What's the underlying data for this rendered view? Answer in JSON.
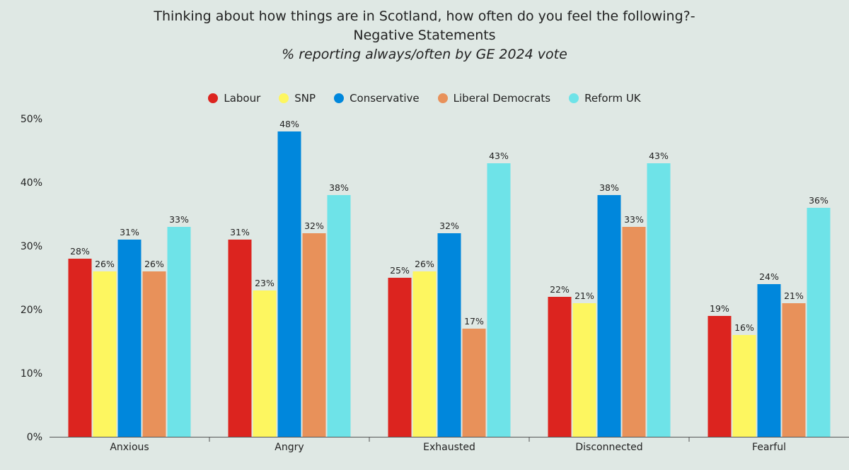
{
  "chart_data": {
    "type": "bar",
    "title_line1": "Thinking about how things are in Scotland, how often do you feel the following?-",
    "title_line2": "Negative Statements",
    "subtitle": "% reporting always/often by GE 2024 vote",
    "categories": [
      "Anxious",
      "Angry",
      "Exhausted",
      "Disconnected",
      "Fearful"
    ],
    "series": [
      {
        "name": "Labour",
        "color": "#dc241f",
        "values": [
          28,
          31,
          25,
          22,
          19
        ]
      },
      {
        "name": "SNP",
        "color": "#fdf660",
        "values": [
          26,
          23,
          26,
          21,
          16
        ]
      },
      {
        "name": "Conservative",
        "color": "#0087dc",
        "values": [
          31,
          48,
          32,
          38,
          24
        ]
      },
      {
        "name": "Liberal Democrats",
        "color": "#e8915a",
        "values": [
          26,
          32,
          17,
          33,
          21
        ]
      },
      {
        "name": "Reform UK",
        "color": "#6ee3e8",
        "values": [
          33,
          38,
          43,
          43,
          36
        ]
      }
    ],
    "ylim": [
      0,
      50
    ],
    "yticks": [
      0,
      10,
      20,
      30,
      40,
      50
    ],
    "value_suffix": "%",
    "legend_position": "top-center",
    "grid": false
  }
}
